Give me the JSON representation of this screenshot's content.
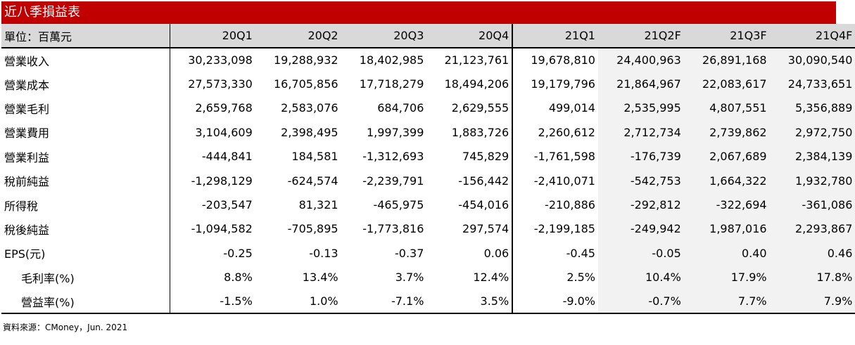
{
  "title": "近八季損益表",
  "header": {
    "unit_label": "單位：百萬元",
    "periods": [
      "20Q1",
      "20Q2",
      "20Q3",
      "20Q4",
      "21Q1",
      "21Q2F",
      "21Q3F",
      "21Q4F"
    ]
  },
  "rows": [
    {
      "label": "營業收入",
      "values": [
        "30,233,098",
        "19,288,932",
        "18,402,985",
        "21,123,761",
        "19,678,810",
        "24,400,963",
        "26,891,168",
        "30,090,540"
      ]
    },
    {
      "label": "營業成本",
      "values": [
        "27,573,330",
        "16,705,856",
        "17,718,279",
        "18,494,206",
        "19,179,796",
        "21,864,967",
        "22,083,617",
        "24,733,651"
      ]
    },
    {
      "label": "營業毛利",
      "values": [
        "2,659,768",
        "2,583,076",
        "684,706",
        "2,629,555",
        "499,014",
        "2,535,995",
        "4,807,551",
        "5,356,889"
      ]
    },
    {
      "label": "營業費用",
      "values": [
        "3,104,609",
        "2,398,495",
        "1,997,399",
        "1,883,726",
        "2,260,612",
        "2,712,734",
        "2,739,862",
        "2,972,750"
      ]
    },
    {
      "label": "營業利益",
      "values": [
        "-444,841",
        "184,581",
        "-1,312,693",
        "745,829",
        "-1,761,598",
        "-176,739",
        "2,067,689",
        "2,384,139"
      ]
    },
    {
      "label": "稅前純益",
      "values": [
        "-1,298,129",
        "-624,574",
        "-2,239,791",
        "-156,442",
        "-2,410,071",
        "-542,753",
        "1,664,322",
        "1,932,780"
      ]
    },
    {
      "label": "所得稅",
      "values": [
        "-203,547",
        "81,321",
        "-465,975",
        "-454,016",
        "-210,886",
        "-292,812",
        "-322,694",
        "-361,086"
      ]
    },
    {
      "label": "稅後純益",
      "values": [
        "-1,094,582",
        "-705,895",
        "-1,773,816",
        "297,574",
        "-2,199,185",
        "-249,942",
        "1,987,016",
        "2,293,867"
      ]
    },
    {
      "label": "EPS(元)",
      "values": [
        "-0.25",
        "-0.13",
        "-0.37",
        "0.06",
        "-0.45",
        "-0.05",
        "0.40",
        "0.46"
      ]
    },
    {
      "label": "毛利率(%)",
      "values": [
        "8.8%",
        "13.4%",
        "3.7%",
        "12.4%",
        "2.5%",
        "10.4%",
        "17.9%",
        "17.8%"
      ],
      "indent": true
    },
    {
      "label": "營益率(%)",
      "values": [
        "-1.5%",
        "1.0%",
        "-7.1%",
        "3.5%",
        "-9.0%",
        "-0.7%",
        "7.7%",
        "7.9%"
      ],
      "indent": true
    }
  ],
  "source": "資料來源：CMoney，Jun. 2021",
  "colors": {
    "title_bg": "#c00000",
    "header_bg": "#d9d9d9",
    "forecast_bg": "#f2f2f2"
  }
}
